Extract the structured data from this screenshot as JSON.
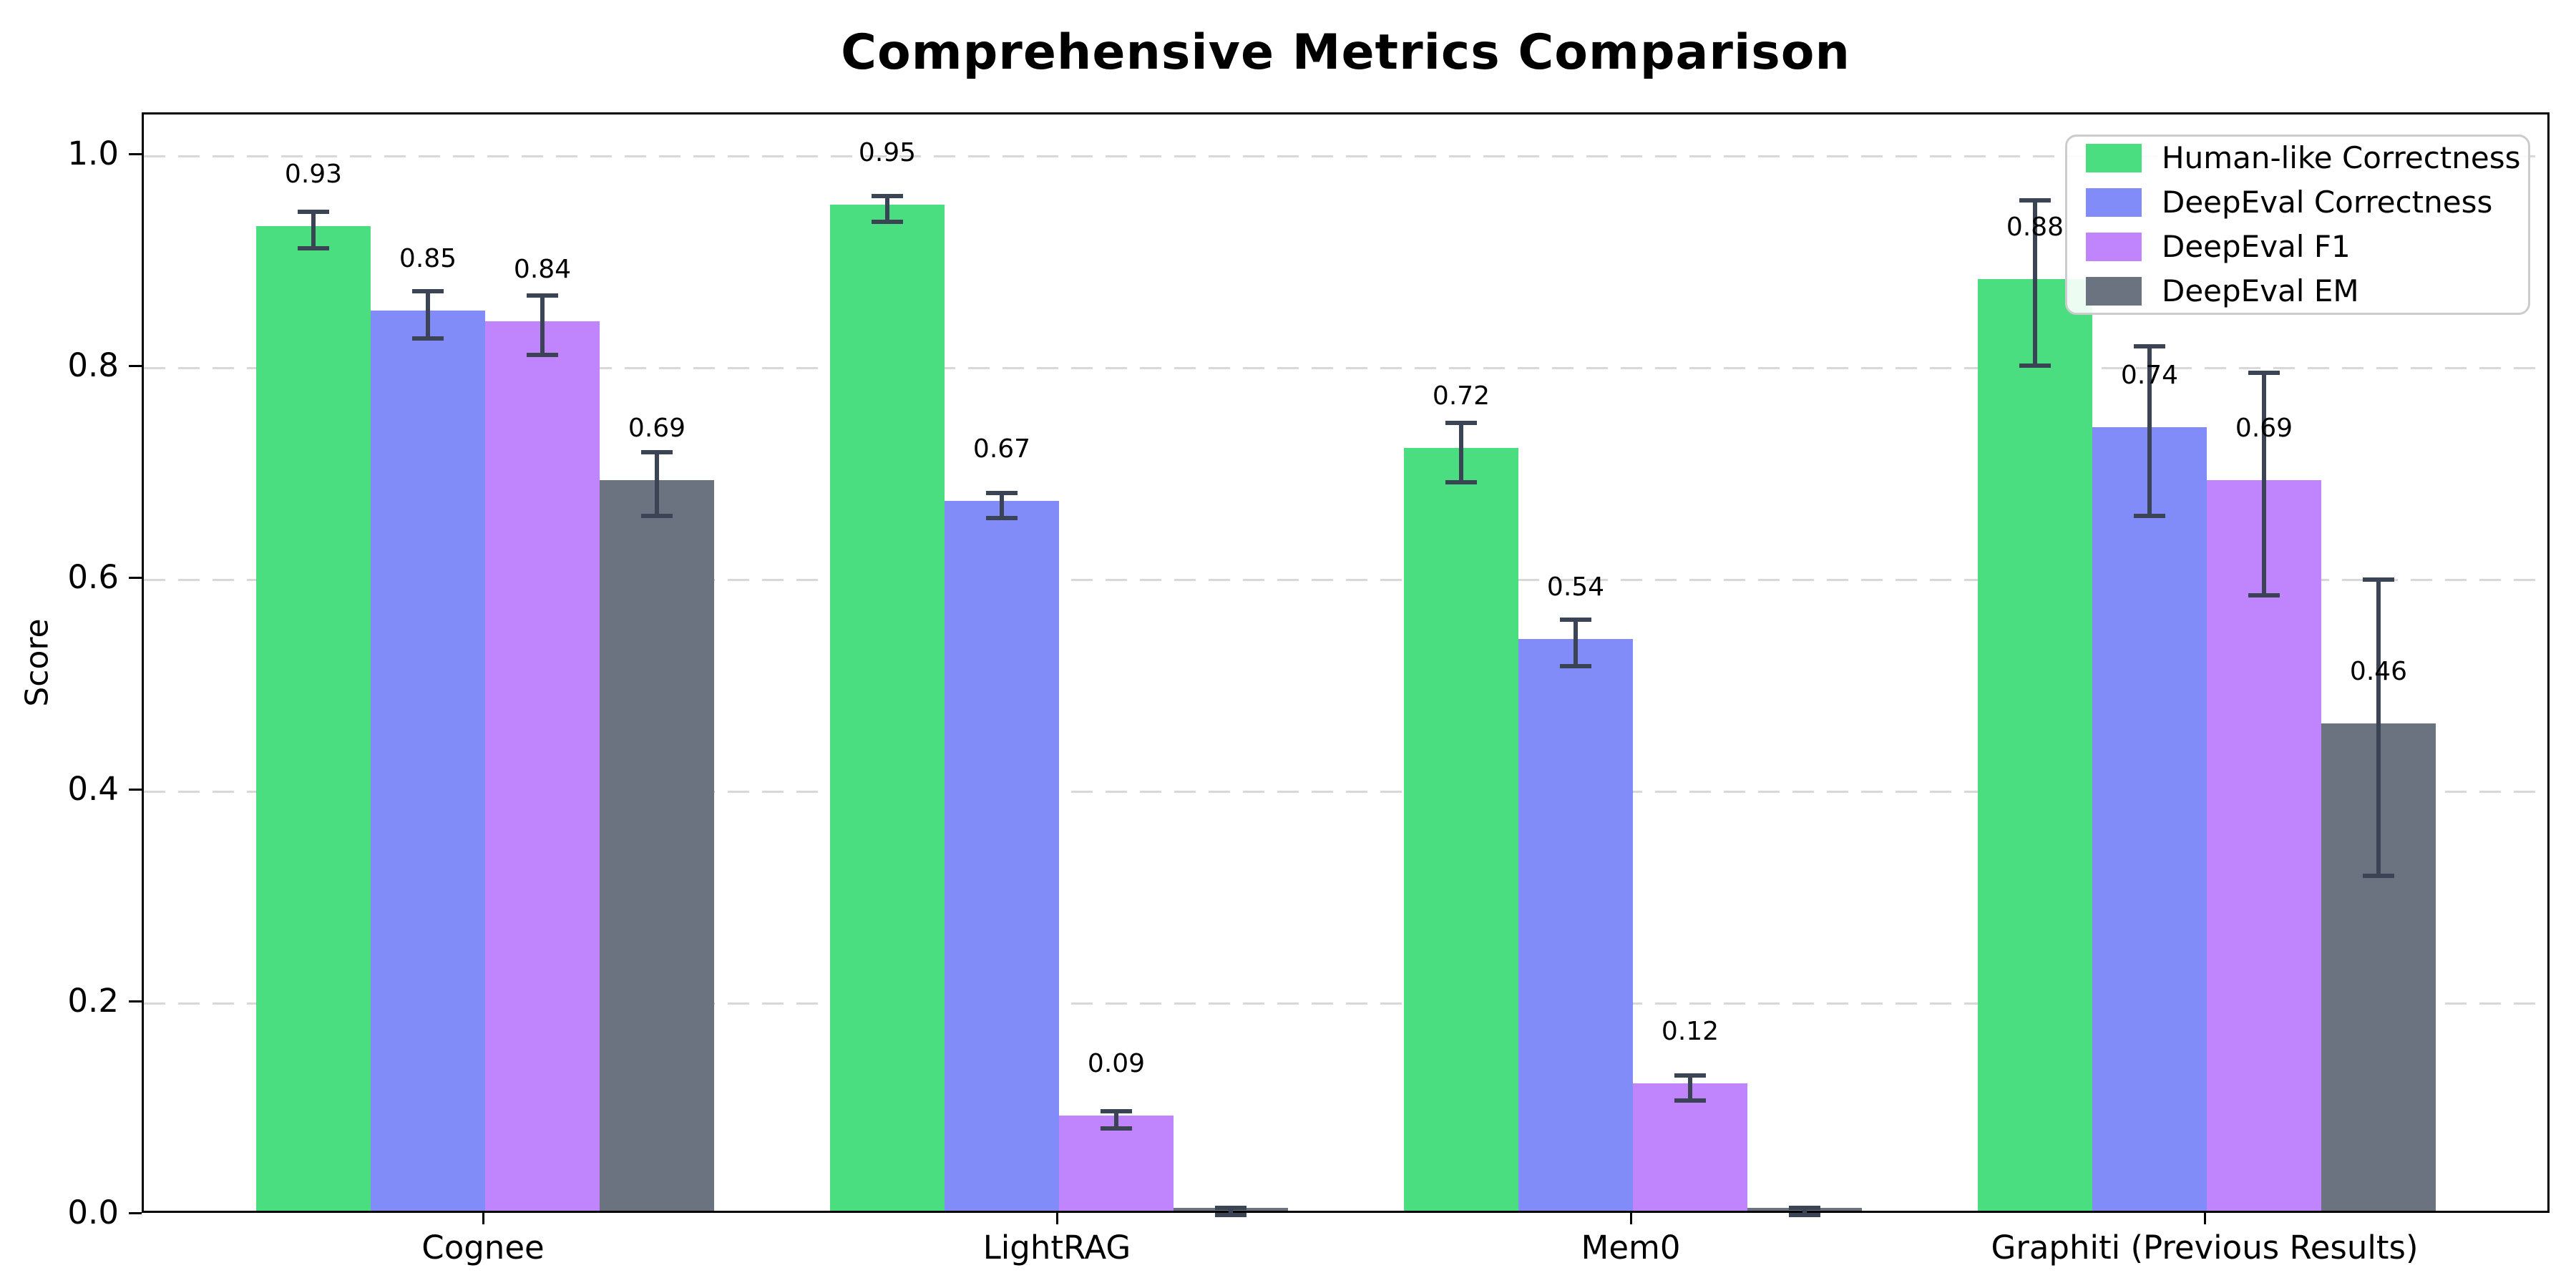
{
  "title": "Comprehensive Metrics Comparison",
  "chart_data": {
    "type": "bar",
    "title": "Comprehensive Metrics Comparison",
    "xlabel": "",
    "ylabel": "Score",
    "categories": [
      "Cognee",
      "LightRAG",
      "Mem0",
      "Graphiti (Previous Results)"
    ],
    "ylim": [
      0,
      1.04
    ],
    "yticks": [
      0,
      0.2,
      0.4,
      0.6,
      0.8,
      1.0
    ],
    "ytick_labels": [
      "0.0",
      "0.2",
      "0.4",
      "0.6",
      "0.8",
      "1.0"
    ],
    "grid": "horizontal dashed gridlines at 0.2 intervals",
    "legend_position": "upper right",
    "error_bar_color": "#3a4454",
    "series": [
      {
        "name": "Human-like Correctness",
        "color": "#4ade80",
        "values": [
          0.93,
          0.95,
          0.72,
          0.88
        ],
        "errors": [
          0.017,
          0.012,
          0.028,
          0.078
        ],
        "labels": [
          "0.93",
          "0.95",
          "0.72",
          "0.88"
        ]
      },
      {
        "name": "DeepEval Correctness",
        "color": "#818cf8",
        "values": [
          0.85,
          0.67,
          0.54,
          0.74
        ],
        "errors": [
          0.022,
          0.012,
          0.022,
          0.08
        ],
        "labels": [
          "0.85",
          "0.67",
          "0.54",
          "0.74"
        ]
      },
      {
        "name": "DeepEval F1",
        "color": "#c084fc",
        "values": [
          0.84,
          0.09,
          0.12,
          0.69
        ],
        "errors": [
          0.028,
          0.008,
          0.012,
          0.105
        ],
        "labels": [
          "0.84",
          "0.09",
          "0.12",
          "0.69"
        ]
      },
      {
        "name": "DeepEval EM",
        "color": "#6b7280",
        "values": [
          0.69,
          0.003,
          0.003,
          0.46
        ],
        "errors": [
          0.03,
          0.004,
          0.004,
          0.14
        ],
        "labels": [
          "0.69",
          "",
          "",
          "0.46"
        ]
      }
    ]
  }
}
